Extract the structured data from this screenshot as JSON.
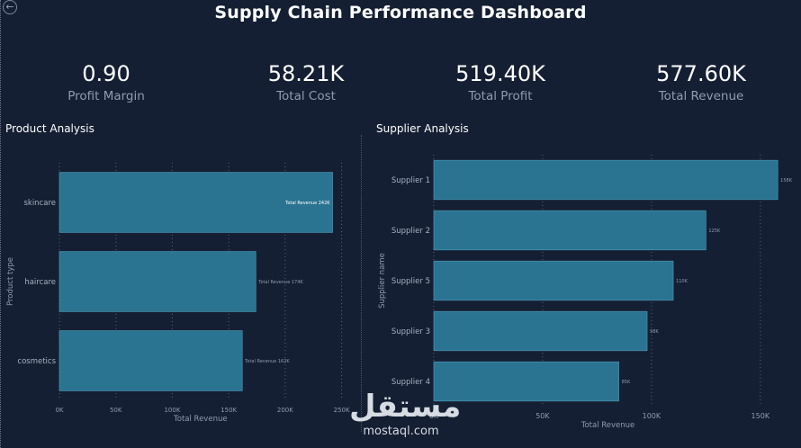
{
  "header": {
    "title": "Supply Chain Performance Dashboard"
  },
  "kpis": [
    {
      "value": "0.90",
      "label": "Profit Margin"
    },
    {
      "value": "58.21K",
      "label": "Total Cost"
    },
    {
      "value": "519.40K",
      "label": "Total Profit"
    },
    {
      "value": "577.60K",
      "label": "Total Revenue"
    }
  ],
  "sections": {
    "product": "Product Analysis",
    "supplier": "Supplier Analysis"
  },
  "watermark": {
    "arabic": "مستقل",
    "latin": "mostaql.com"
  },
  "colors": {
    "bar": "#2a7491",
    "bar_border": "#4f9cb8",
    "background": "#151f33",
    "grid": "#56627a"
  },
  "chart_data": [
    {
      "type": "bar",
      "orientation": "horizontal",
      "categories": [
        "skincare",
        "haircare",
        "cosmetics"
      ],
      "values": [
        242,
        174,
        162
      ],
      "data_labels": [
        "Total Revenue 242K",
        "Total Revenue 174K",
        "Total Revenue 162K"
      ],
      "x_ticks": [
        0,
        50,
        100,
        150,
        200,
        250
      ],
      "x_tick_labels": [
        "0K",
        "50K",
        "100K",
        "150K",
        "200K",
        "250K"
      ],
      "xlim": [
        0,
        250
      ],
      "xlabel": "Total Revenue",
      "ylabel": "Product type",
      "grid": true
    },
    {
      "type": "bar",
      "orientation": "horizontal",
      "categories": [
        "Supplier 1",
        "Supplier 2",
        "Supplier 5",
        "Supplier 3",
        "Supplier 4"
      ],
      "values": [
        158,
        125,
        110,
        98,
        85
      ],
      "data_labels": [
        "158K",
        "125K",
        "110K",
        "98K",
        "85K"
      ],
      "x_ticks": [
        0,
        50,
        100,
        150
      ],
      "x_tick_labels": [
        "0K",
        "50K",
        "100K",
        "150K"
      ],
      "xlim": [
        0,
        160
      ],
      "xlabel": "Total Revenue",
      "ylabel": "Supplier name",
      "grid": true
    }
  ]
}
